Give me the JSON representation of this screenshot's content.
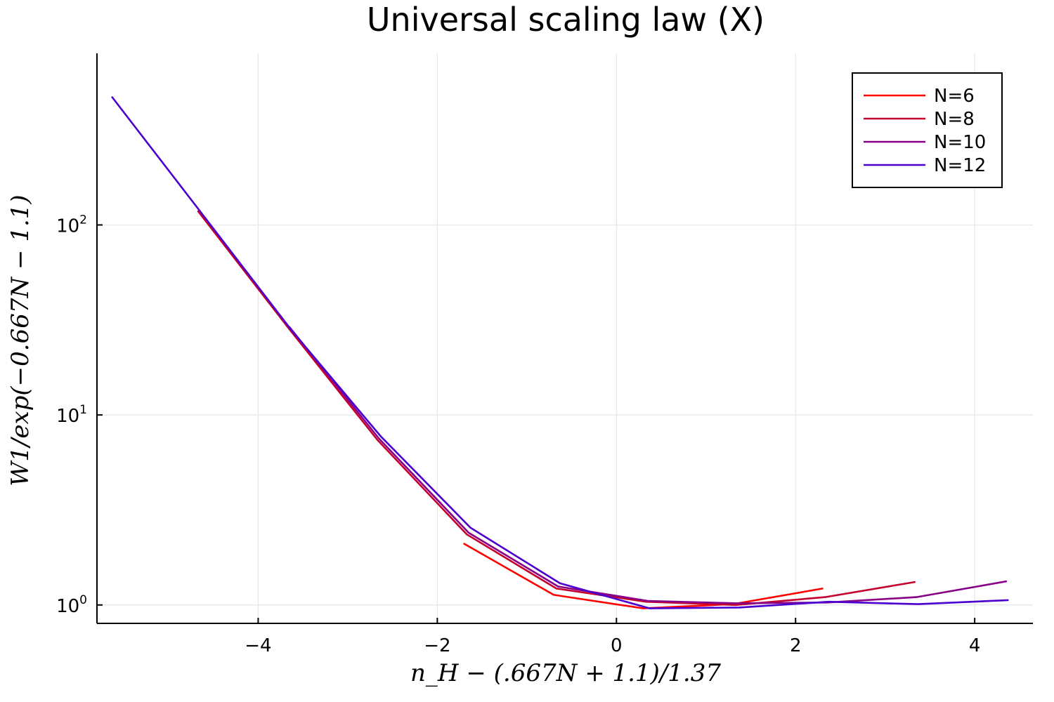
{
  "chart_data": {
    "type": "line",
    "title": "Universal scaling law (X)",
    "xlabel": "n_H − (.667N + 1.1)/1.37",
    "ylabel": "W1/exp(−0.667N − 1.1)",
    "yscale": "log10",
    "xlim": [
      -5.8,
      4.65
    ],
    "ylim": [
      0.8,
      800
    ],
    "grid": true,
    "legend_position": "top-right",
    "x_ticks": [
      {
        "value": -4,
        "label": "−4"
      },
      {
        "value": -2,
        "label": "−2"
      },
      {
        "value": 0,
        "label": "0"
      },
      {
        "value": 2,
        "label": "2"
      },
      {
        "value": 4,
        "label": "4"
      }
    ],
    "y_ticks": [
      {
        "value": 1,
        "base": "10",
        "exp": "0"
      },
      {
        "value": 10,
        "base": "10",
        "exp": "1"
      },
      {
        "value": 100,
        "base": "10",
        "exp": "2"
      }
    ],
    "series": [
      {
        "name": "N=6",
        "color": "#ff0000",
        "x": [
          -1.7,
          -0.7,
          0.3,
          1.3,
          2.3
        ],
        "y": [
          2.1,
          1.13,
          0.96,
          1.01,
          1.22
        ]
      },
      {
        "name": "N=8",
        "color": "#c4002e",
        "x": [
          -4.67,
          -3.67,
          -2.67,
          -1.67,
          -0.67,
          0.33,
          1.33,
          2.33,
          3.33
        ],
        "y": [
          118,
          29,
          7.4,
          2.35,
          1.22,
          1.04,
          1.0,
          1.1,
          1.32
        ]
      },
      {
        "name": "N=10",
        "color": "#880088",
        "x": [
          -3.65,
          -2.65,
          -1.65,
          -0.65,
          0.35,
          1.35,
          2.35,
          3.35,
          4.35
        ],
        "y": [
          29,
          7.5,
          2.4,
          1.25,
          1.05,
          1.02,
          1.03,
          1.1,
          1.33
        ]
      },
      {
        "name": "N=12",
        "color": "#4b00d0",
        "x": [
          -5.63,
          -4.63,
          -3.63,
          -2.63,
          -1.63,
          -0.63,
          0.37,
          1.37,
          2.37,
          3.37,
          4.37
        ],
        "y": [
          470,
          115,
          28,
          7.7,
          2.55,
          1.3,
          0.96,
          0.97,
          1.04,
          1.01,
          1.06
        ]
      }
    ]
  }
}
